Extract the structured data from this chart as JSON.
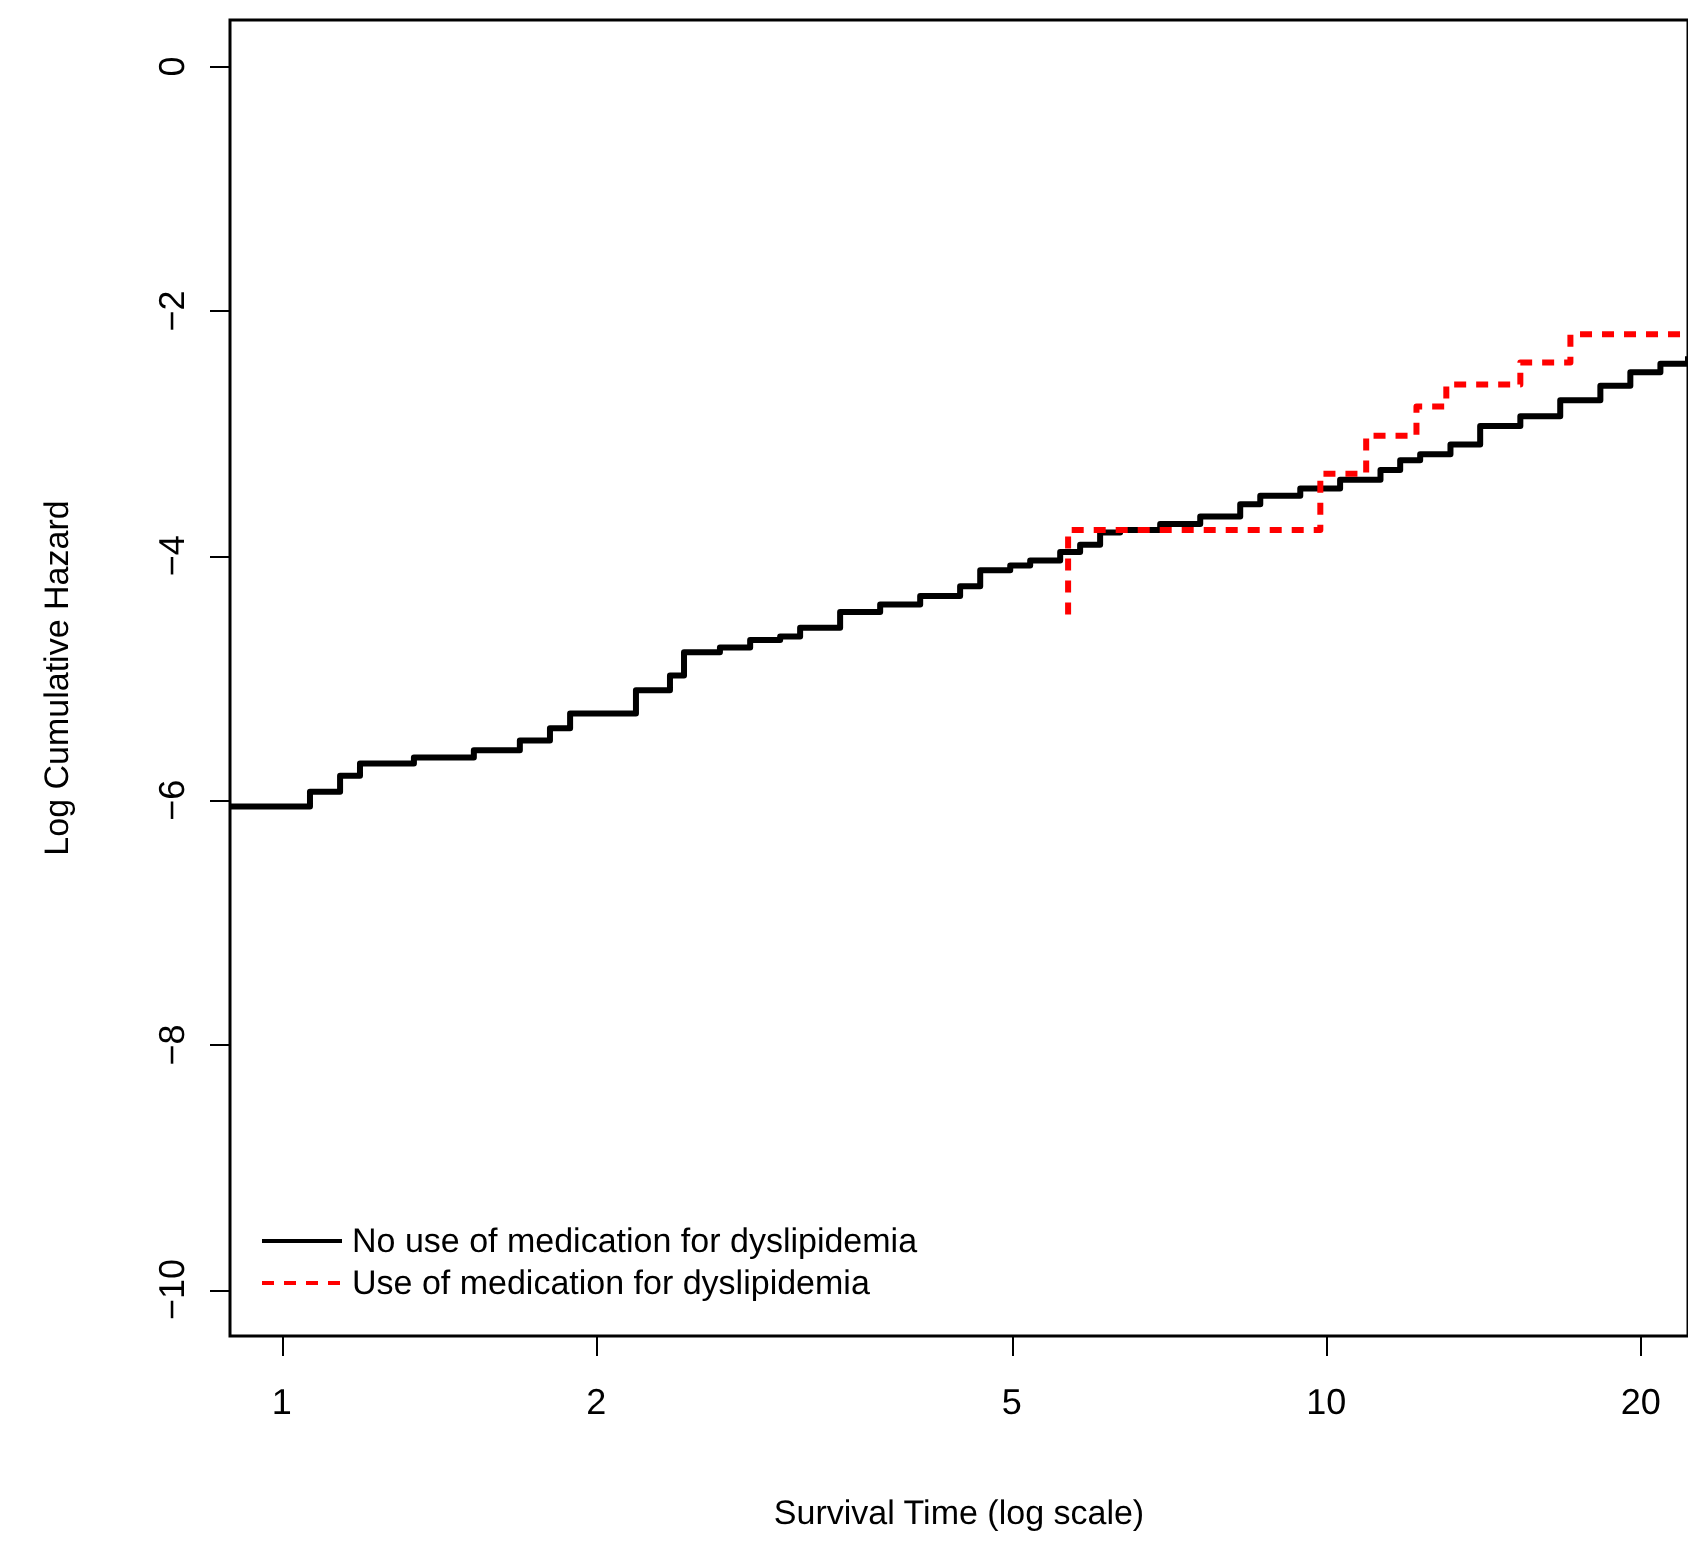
{
  "chart_data": {
    "type": "step",
    "xlabel": "Survival Time (log scale)",
    "ylabel": "Log Cumulative Hazard",
    "log": "x",
    "xlim": [
      0.892,
      22.2
    ],
    "xticks": [
      1,
      2,
      5,
      10,
      20
    ],
    "ylim": [
      -10.38,
      0.38
    ],
    "yticks": [
      0,
      -2,
      -4,
      -6,
      -8,
      -10
    ],
    "grid": false,
    "legend": "bottom left",
    "marker": "none",
    "series": [
      {
        "name": "No use of medication for dyslipidemia",
        "color": "#000000",
        "line_style": "solid",
        "x": [
          0.892,
          1.064,
          1.137,
          1.188,
          1.338,
          1.527,
          1.69,
          1.806,
          1.888,
          2.136,
          2.183,
          2.353,
          2.427,
          2.627,
          2.808,
          3.0,
          3.135,
          3.424,
          3.74,
          4.085,
          4.461,
          4.663,
          4.982,
          5.206,
          5.562,
          5.812,
          6.074,
          6.348,
          6.934,
          7.574,
          8.272,
          8.646,
          9.443,
          10.31,
          11.27,
          11.77,
          12.3,
          13.15,
          14.04,
          15.34,
          16.75,
          18.3,
          19.55,
          20.89,
          22.2
        ],
        "values": [
          -6.05,
          -5.93,
          -5.8,
          -5.7,
          -5.65,
          -5.59,
          -5.51,
          -5.41,
          -5.29,
          -5.29,
          -5.1,
          -4.98,
          -4.79,
          -4.75,
          -4.69,
          -4.66,
          -4.59,
          -4.46,
          -4.4,
          -4.33,
          -4.25,
          -4.12,
          -4.08,
          -4.04,
          -3.97,
          -3.91,
          -3.81,
          -3.79,
          -3.74,
          -3.68,
          -3.58,
          -3.51,
          -3.45,
          -3.38,
          -3.3,
          -3.22,
          -3.17,
          -3.09,
          -2.94,
          -2.86,
          -2.73,
          -2.61,
          -2.5,
          -2.43,
          -2.37
        ]
      },
      {
        "name": "Use of medication for dyslipidemia",
        "color": "#ff0000",
        "line_style": "dashed",
        "x": [
          5.66,
          5.66,
          9.87,
          10.92,
          12.2,
          13.03,
          15.34,
          17.13,
          22.2
        ],
        "values": [
          -4.48,
          -3.79,
          -3.33,
          -3.02,
          -2.78,
          -2.6,
          -2.42,
          -2.19,
          -2.19
        ]
      }
    ]
  }
}
